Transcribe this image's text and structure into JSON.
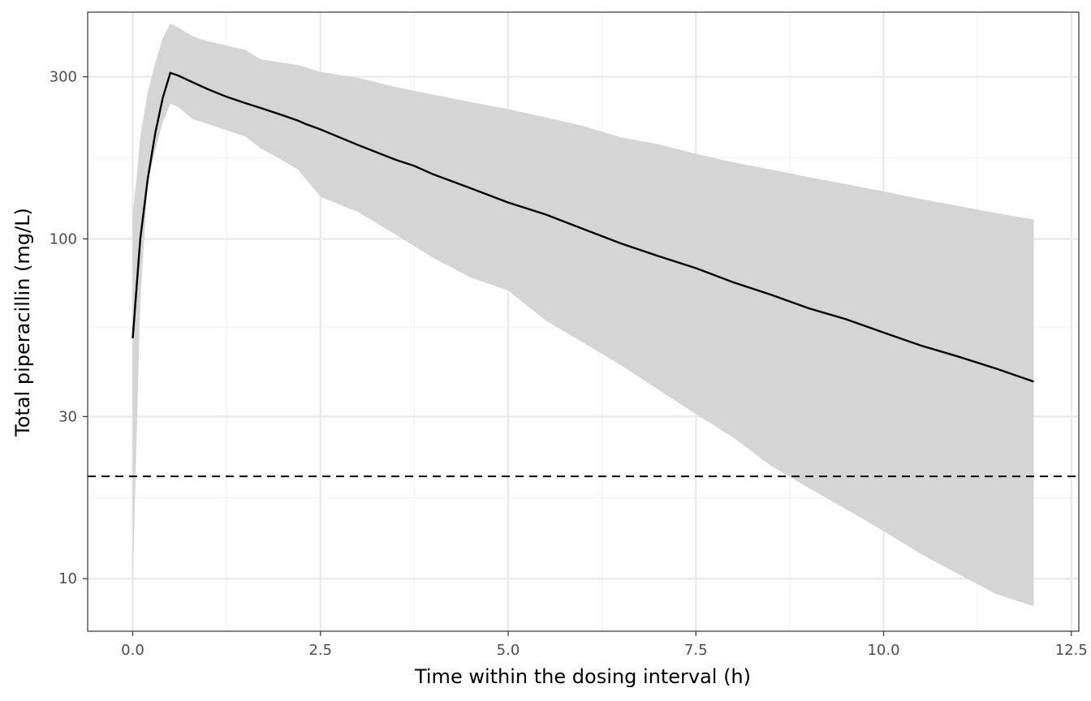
{
  "chart_data": {
    "type": "line",
    "title": "",
    "xlabel": "Time within the dosing interval (h)",
    "ylabel": "Total piperacillin (mg/L)",
    "x_scale": "linear",
    "y_scale": "log",
    "xlim": [
      -0.6,
      12.6
    ],
    "ylim": [
      7.0,
      465
    ],
    "x_ticks": [
      0,
      2.5,
      5,
      7.5,
      10,
      12.5
    ],
    "x_tick_labels": [
      "0.0",
      "2.5",
      "5.0",
      "7.5",
      "10.0",
      "12.5"
    ],
    "y_ticks": [
      10,
      30,
      100,
      300
    ],
    "y_tick_labels": [
      "10",
      "30",
      "100",
      "300"
    ],
    "x_minor_ticks": [
      1.25,
      3.75,
      6.25,
      8.75,
      11.25
    ],
    "y_minor_ticks": [
      17.3,
      54.8,
      173.2
    ],
    "grid": true,
    "theme": "bw",
    "colors": {
      "line": "#000000",
      "band": "#d5d5d5",
      "grid_major": "#ebebeb",
      "grid_minor": "#f4f4f4",
      "panel_border": "#333333"
    },
    "series": [
      {
        "type": "line",
        "x": [
          0,
          0.1,
          0.2,
          0.3,
          0.4,
          0.5,
          0.6,
          0.8,
          1.0,
          1.25,
          1.5,
          1.75,
          2.0,
          2.2,
          2.3,
          2.5,
          3.0,
          3.5,
          3.75,
          4.0,
          4.5,
          5.0,
          5.5,
          6.0,
          6.5,
          7.0,
          7.5,
          8.0,
          8.5,
          9.0,
          9.5,
          10.0,
          10.5,
          11.0,
          11.5,
          12.0
        ],
        "y": [
          51,
          100,
          150,
          205,
          260,
          308,
          303,
          289,
          276,
          262,
          251,
          241,
          231,
          223,
          218,
          210,
          189,
          171,
          164,
          155,
          141,
          128,
          118,
          107,
          97,
          89,
          82,
          74.5,
          68.5,
          62.5,
          58,
          53,
          48.5,
          45,
          41.5,
          38
        ]
      },
      {
        "type": "band",
        "x": [
          0,
          0.05,
          0.1,
          0.2,
          0.3,
          0.4,
          0.5,
          0.6,
          0.8,
          1.0,
          1.5,
          1.7,
          2.0,
          2.2,
          2.5,
          3.0,
          3.5,
          4.0,
          4.5,
          5.0,
          5.5,
          6.0,
          6.5,
          7.0,
          7.5,
          8.0,
          8.5,
          9.0,
          9.5,
          10.0,
          10.5,
          11.0,
          11.5,
          12.0
        ],
        "lower": [
          9.5,
          25,
          65,
          148,
          182,
          220,
          250,
          245,
          225,
          218,
          200,
          185,
          170,
          160,
          133,
          120,
          103,
          88,
          77,
          70.5,
          57.5,
          49.5,
          42.5,
          36,
          30.5,
          26,
          21.5,
          18.5,
          16,
          13.8,
          11.8,
          10.3,
          9,
          8.3
        ],
        "upper": [
          120,
          150,
          200,
          270,
          330,
          390,
          430,
          420,
          395,
          382,
          360,
          338,
          330,
          325,
          310,
          298,
          280,
          266,
          253,
          241,
          228,
          215,
          199,
          190,
          178,
          168,
          160,
          152,
          145,
          138,
          131,
          125,
          119,
          114
        ]
      }
    ],
    "reference_line": {
      "y": 20,
      "style": "dashed"
    }
  }
}
